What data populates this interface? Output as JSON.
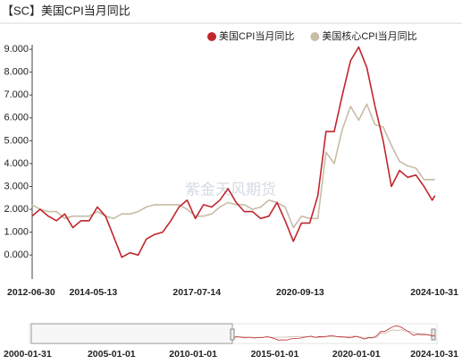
{
  "chart_data": {
    "type": "line",
    "title": "【SC】美国CPI当月同比",
    "watermark": "紫金天风期货",
    "x": [
      "2012-06",
      "2012-09",
      "2012-12",
      "2013-03",
      "2013-06",
      "2013-09",
      "2013-12",
      "2014-03",
      "2014-06",
      "2014-09",
      "2014-12",
      "2015-03",
      "2015-06",
      "2015-09",
      "2015-12",
      "2016-03",
      "2016-06",
      "2016-09",
      "2016-12",
      "2017-03",
      "2017-06",
      "2017-09",
      "2017-12",
      "2018-03",
      "2018-06",
      "2018-09",
      "2018-12",
      "2019-03",
      "2019-06",
      "2019-09",
      "2019-12",
      "2020-03",
      "2020-06",
      "2020-09",
      "2020-12",
      "2021-03",
      "2021-06",
      "2021-09",
      "2021-12",
      "2022-03",
      "2022-06",
      "2022-09",
      "2022-12",
      "2023-03",
      "2023-06",
      "2023-09",
      "2023-12",
      "2024-03",
      "2024-06",
      "2024-09",
      "2024-10"
    ],
    "series": [
      {
        "name": "美国CPI当月同比",
        "color": "#c0262d",
        "values": [
          1.7,
          2.0,
          1.7,
          1.5,
          1.8,
          1.2,
          1.5,
          1.5,
          2.1,
          1.7,
          0.8,
          -0.1,
          0.1,
          0.0,
          0.7,
          0.9,
          1.0,
          1.5,
          2.1,
          2.4,
          1.6,
          2.2,
          2.1,
          2.4,
          2.9,
          2.3,
          1.9,
          1.9,
          1.6,
          1.7,
          2.3,
          1.5,
          0.6,
          1.4,
          1.4,
          2.6,
          5.4,
          5.4,
          7.0,
          8.5,
          9.1,
          8.2,
          6.5,
          5.0,
          3.0,
          3.7,
          3.4,
          3.5,
          3.0,
          2.4,
          2.6
        ]
      },
      {
        "name": "美国核心CPI当月同比",
        "color": "#c8bca6",
        "values": [
          2.2,
          2.0,
          1.9,
          1.9,
          1.6,
          1.7,
          1.7,
          1.7,
          1.9,
          1.7,
          1.6,
          1.8,
          1.8,
          1.9,
          2.1,
          2.2,
          2.2,
          2.2,
          2.2,
          2.0,
          1.7,
          1.7,
          1.8,
          2.1,
          2.3,
          2.2,
          2.2,
          2.0,
          2.1,
          2.4,
          2.3,
          2.1,
          1.2,
          1.7,
          1.6,
          1.6,
          4.5,
          4.0,
          5.5,
          6.5,
          5.9,
          6.6,
          5.7,
          5.6,
          4.8,
          4.1,
          3.9,
          3.8,
          3.3,
          3.3,
          3.3
        ]
      }
    ],
    "ylim": [
      -1.05,
      9.2
    ],
    "yticks": [
      {
        "value": 0,
        "label": "0.000"
      },
      {
        "value": 1,
        "label": "1.000"
      },
      {
        "value": 2,
        "label": "2.000"
      },
      {
        "value": 3,
        "label": "3.000"
      },
      {
        "value": 4,
        "label": "4.000"
      },
      {
        "value": 5,
        "label": "5.000"
      },
      {
        "value": 6,
        "label": "6.000"
      },
      {
        "value": 7,
        "label": "7.000"
      },
      {
        "value": 8,
        "label": "8.000"
      },
      {
        "value": 9,
        "label": "9.000"
      }
    ],
    "xticks": [
      "2012-06-30",
      "2014-05-13",
      "2017-07-14",
      "2020-09-13",
      "2024-10-31"
    ],
    "navigator_xticks": [
      "2000-01-31",
      "2005-01-01",
      "2010-01-01",
      "2015-01-01",
      "2020-01-01",
      "2024-10-31"
    ],
    "legend": "top-right"
  }
}
